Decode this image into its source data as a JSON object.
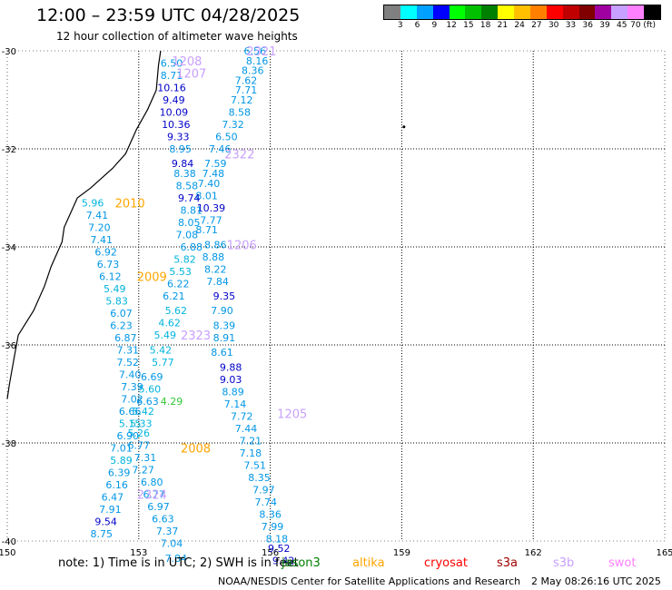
{
  "title": "12:00 – 23:59 UTC 04/28/2025",
  "subtitle": "12 hour collection of altimeter wave heights",
  "colorbar": {
    "labels": [
      "3",
      "6",
      "9",
      "12",
      "15",
      "18",
      "21",
      "24",
      "27",
      "30",
      "33",
      "36",
      "39",
      "45",
      "70 (ft)"
    ],
    "colors": [
      "#808080",
      "#00ffff",
      "#00a0ff",
      "#0000ff",
      "#00ff00",
      "#00c000",
      "#008000",
      "#ffff00",
      "#ffc000",
      "#ff8000",
      "#ff0000",
      "#c00000",
      "#800000",
      "#a000a0",
      "#c8a0ff",
      "#ff80ff",
      "#000000"
    ]
  },
  "note": "note:  1) Time is in UTC;  2) SWH is in feet",
  "satellites": [
    {
      "name": "jason3",
      "color": "#008000"
    },
    {
      "name": "altika",
      "color": "#ffa500"
    },
    {
      "name": "cryosat",
      "color": "#ff0000"
    },
    {
      "name": "s3a",
      "color": "#a00000"
    },
    {
      "name": "s3b",
      "color": "#c8a0ff"
    },
    {
      "name": "swot",
      "color": "#ff80ff"
    }
  ],
  "footer": {
    "credit": "NOAA/NESDIS Center for Satellite Applications and Research",
    "time": "2 May 08:26:16 UTC 2025"
  },
  "chart_data": {
    "type": "scatter",
    "xlim": [
      150,
      165
    ],
    "ylim": [
      -40,
      -30
    ],
    "x_ticks": [
      "150",
      "153",
      "156",
      "159",
      "162",
      "165"
    ],
    "y_ticks": [
      "-30",
      "-32",
      "-34",
      "-36",
      "-38",
      "-40"
    ],
    "grid": true,
    "coastline": [
      [
        153.5,
        -30.0
      ],
      [
        153.45,
        -30.3
      ],
      [
        153.4,
        -30.8
      ],
      [
        153.2,
        -31.2
      ],
      [
        152.95,
        -31.6
      ],
      [
        152.7,
        -32.1
      ],
      [
        152.4,
        -32.4
      ],
      [
        151.9,
        -32.8
      ],
      [
        151.6,
        -33.0
      ],
      [
        151.3,
        -33.6
      ],
      [
        151.25,
        -33.9
      ],
      [
        151.0,
        -34.4
      ],
      [
        150.85,
        -34.8
      ],
      [
        150.6,
        -35.3
      ],
      [
        150.25,
        -35.8
      ],
      [
        150.15,
        -36.3
      ],
      [
        150.05,
        -36.8
      ],
      [
        150.0,
        -37.1
      ]
    ],
    "time_labels": [
      {
        "text": "2321",
        "lon": 155.8,
        "lat": -30.0,
        "sat": "s3b"
      },
      {
        "text": "1208",
        "lon": 154.1,
        "lat": -30.2,
        "sat": "s3b"
      },
      {
        "text": "1207",
        "lon": 154.2,
        "lat": -30.45,
        "sat": "s3b"
      },
      {
        "text": "2322",
        "lon": 155.3,
        "lat": -32.1,
        "sat": "s3b"
      },
      {
        "text": "2010",
        "lon": 152.8,
        "lat": -33.1,
        "sat": "altika"
      },
      {
        "text": "1206",
        "lon": 155.35,
        "lat": -33.95,
        "sat": "s3b"
      },
      {
        "text": "2009",
        "lon": 153.3,
        "lat": -34.6,
        "sat": "altika"
      },
      {
        "text": "2323",
        "lon": 154.3,
        "lat": -35.8,
        "sat": "s3b"
      },
      {
        "text": "1205",
        "lon": 156.5,
        "lat": -37.4,
        "sat": "s3b"
      },
      {
        "text": "2008",
        "lon": 154.3,
        "lat": -38.1,
        "sat": "altika"
      },
      {
        "text": "2324",
        "lon": 153.3,
        "lat": -39.05,
        "sat": "s3b"
      }
    ],
    "series": [
      {
        "name": "jason3",
        "color": "#008000",
        "points": [
          {
            "lon": 153.75,
            "lat": -37.15,
            "v": "4.29"
          }
        ]
      },
      {
        "name": "s3b",
        "color": "#0000a0",
        "points": [
          {
            "lon": 155.65,
            "lat": -30.0,
            "v": "6.56"
          },
          {
            "lon": 155.7,
            "lat": -30.2,
            "v": "8.16"
          },
          {
            "lon": 155.6,
            "lat": -30.4,
            "v": "8.36"
          },
          {
            "lon": 155.45,
            "lat": -30.6,
            "v": "7.62"
          },
          {
            "lon": 155.45,
            "lat": -30.8,
            "v": "7.71"
          },
          {
            "lon": 155.35,
            "lat": -31.0,
            "v": "7.12"
          },
          {
            "lon": 155.3,
            "lat": -31.25,
            "v": "8.58"
          },
          {
            "lon": 155.15,
            "lat": -31.5,
            "v": "7.32"
          },
          {
            "lon": 155.0,
            "lat": -31.75,
            "v": "6.50"
          },
          {
            "lon": 154.85,
            "lat": -32.0,
            "v": "7.46"
          },
          {
            "lon": 154.75,
            "lat": -32.3,
            "v": "7.59"
          },
          {
            "lon": 154.7,
            "lat": -32.5,
            "v": "7.48"
          },
          {
            "lon": 154.6,
            "lat": -32.7,
            "v": "7.40"
          },
          {
            "lon": 154.55,
            "lat": -32.95,
            "v": "8.01"
          },
          {
            "lon": 154.65,
            "lat": -33.2,
            "v": "10.39"
          },
          {
            "lon": 154.65,
            "lat": -33.45,
            "v": "7.77"
          },
          {
            "lon": 154.55,
            "lat": -33.65,
            "v": "8.71"
          },
          {
            "lon": 154.75,
            "lat": -33.95,
            "v": "8.86"
          },
          {
            "lon": 154.7,
            "lat": -34.2,
            "v": "8.88"
          },
          {
            "lon": 154.75,
            "lat": -34.45,
            "v": "8.22"
          },
          {
            "lon": 154.8,
            "lat": -34.7,
            "v": "7.84"
          },
          {
            "lon": 154.95,
            "lat": -35.0,
            "v": "9.35"
          },
          {
            "lon": 154.9,
            "lat": -35.3,
            "v": "7.90"
          },
          {
            "lon": 154.95,
            "lat": -35.6,
            "v": "8.39"
          },
          {
            "lon": 154.95,
            "lat": -35.85,
            "v": "8.91"
          },
          {
            "lon": 154.9,
            "lat": -36.15,
            "v": "8.61"
          },
          {
            "lon": 155.1,
            "lat": -36.45,
            "v": "9.88"
          },
          {
            "lon": 155.1,
            "lat": -36.7,
            "v": "9.03"
          },
          {
            "lon": 155.15,
            "lat": -36.95,
            "v": "8.89"
          },
          {
            "lon": 155.2,
            "lat": -37.2,
            "v": "7.14"
          },
          {
            "lon": 155.35,
            "lat": -37.45,
            "v": "7.72"
          },
          {
            "lon": 155.45,
            "lat": -37.7,
            "v": "7.44"
          },
          {
            "lon": 155.55,
            "lat": -37.95,
            "v": "7.21"
          },
          {
            "lon": 155.55,
            "lat": -38.2,
            "v": "7.18"
          },
          {
            "lon": 155.65,
            "lat": -38.45,
            "v": "7.51"
          },
          {
            "lon": 155.75,
            "lat": -38.7,
            "v": "8.35"
          },
          {
            "lon": 155.85,
            "lat": -38.95,
            "v": "7.97"
          },
          {
            "lon": 155.9,
            "lat": -39.2,
            "v": "7.74"
          },
          {
            "lon": 156.0,
            "lat": -39.45,
            "v": "8.36"
          },
          {
            "lon": 156.05,
            "lat": -39.7,
            "v": "7.99"
          },
          {
            "lon": 156.15,
            "lat": -39.95,
            "v": "8.18"
          },
          {
            "lon": 156.2,
            "lat": -40.15,
            "v": "9.52"
          },
          {
            "lon": 156.3,
            "lat": -40.4,
            "v": "9.42"
          },
          {
            "lon": 153.75,
            "lat": -30.25,
            "v": "6.50"
          },
          {
            "lon": 153.75,
            "lat": -30.5,
            "v": "8.71"
          },
          {
            "lon": 153.75,
            "lat": -30.75,
            "v": "10.16"
          },
          {
            "lon": 153.8,
            "lat": -31.0,
            "v": "9.49"
          },
          {
            "lon": 153.8,
            "lat": -31.25,
            "v": "10.09"
          },
          {
            "lon": 153.85,
            "lat": -31.5,
            "v": "10.36"
          },
          {
            "lon": 153.9,
            "lat": -31.75,
            "v": "9.33"
          },
          {
            "lon": 153.95,
            "lat": -32.0,
            "v": "8.95"
          },
          {
            "lon": 154.0,
            "lat": -32.3,
            "v": "9.84"
          },
          {
            "lon": 154.05,
            "lat": -32.5,
            "v": "8.38"
          },
          {
            "lon": 154.1,
            "lat": -32.75,
            "v": "8.58"
          },
          {
            "lon": 154.15,
            "lat": -33.0,
            "v": "9.74"
          },
          {
            "lon": 154.2,
            "lat": -33.25,
            "v": "8.81"
          },
          {
            "lon": 154.15,
            "lat": -33.5,
            "v": "8.05"
          },
          {
            "lon": 154.1,
            "lat": -33.75,
            "v": "7.08"
          },
          {
            "lon": 154.2,
            "lat": -34.0,
            "v": "6.88"
          },
          {
            "lon": 154.05,
            "lat": -34.25,
            "v": "5.82"
          },
          {
            "lon": 153.95,
            "lat": -34.5,
            "v": "5.53"
          },
          {
            "lon": 153.9,
            "lat": -34.75,
            "v": "6.22"
          },
          {
            "lon": 153.8,
            "lat": -35.0,
            "v": "6.21"
          },
          {
            "lon": 153.85,
            "lat": -35.3,
            "v": "5.62"
          },
          {
            "lon": 153.7,
            "lat": -35.55,
            "v": "4.62"
          },
          {
            "lon": 153.6,
            "lat": -35.8,
            "v": "5.49"
          },
          {
            "lon": 153.5,
            "lat": -36.1,
            "v": "5.42"
          },
          {
            "lon": 153.55,
            "lat": -36.35,
            "v": "5.77"
          },
          {
            "lon": 153.3,
            "lat": -36.65,
            "v": "6.69"
          },
          {
            "lon": 153.25,
            "lat": -36.9,
            "v": "5.60"
          },
          {
            "lon": 153.2,
            "lat": -37.15,
            "v": "6.63"
          },
          {
            "lon": 153.1,
            "lat": -37.35,
            "v": "5.42"
          },
          {
            "lon": 153.05,
            "lat": -37.6,
            "v": "5.33"
          },
          {
            "lon": 153.0,
            "lat": -37.8,
            "v": "5.26"
          },
          {
            "lon": 153.0,
            "lat": -38.05,
            "v": "6.77"
          },
          {
            "lon": 153.15,
            "lat": -38.3,
            "v": "7.31"
          },
          {
            "lon": 153.1,
            "lat": -38.55,
            "v": "7.27"
          },
          {
            "lon": 153.3,
            "lat": -38.8,
            "v": "6.80"
          },
          {
            "lon": 153.35,
            "lat": -39.05,
            "v": "6.77"
          },
          {
            "lon": 153.45,
            "lat": -39.3,
            "v": "6.97"
          },
          {
            "lon": 153.55,
            "lat": -39.55,
            "v": "6.63"
          },
          {
            "lon": 153.65,
            "lat": -39.8,
            "v": "7.37"
          },
          {
            "lon": 153.75,
            "lat": -40.05,
            "v": "7.04"
          },
          {
            "lon": 153.85,
            "lat": -40.35,
            "v": "7.84"
          }
        ]
      },
      {
        "name": "altika",
        "color": "#00a0ff",
        "points": [
          {
            "lon": 151.95,
            "lat": -33.1,
            "v": "5.96"
          },
          {
            "lon": 152.05,
            "lat": -33.35,
            "v": "7.41"
          },
          {
            "lon": 152.1,
            "lat": -33.6,
            "v": "7.20"
          },
          {
            "lon": 152.15,
            "lat": -33.85,
            "v": "7.41"
          },
          {
            "lon": 152.25,
            "lat": -34.1,
            "v": "6.92"
          },
          {
            "lon": 152.3,
            "lat": -34.35,
            "v": "6.73"
          },
          {
            "lon": 152.35,
            "lat": -34.6,
            "v": "6.12"
          },
          {
            "lon": 152.45,
            "lat": -34.85,
            "v": "5.49"
          },
          {
            "lon": 152.5,
            "lat": -35.1,
            "v": "5.83"
          },
          {
            "lon": 152.6,
            "lat": -35.35,
            "v": "6.07"
          },
          {
            "lon": 152.6,
            "lat": -35.6,
            "v": "6.23"
          },
          {
            "lon": 152.7,
            "lat": -35.85,
            "v": "6.87"
          },
          {
            "lon": 152.75,
            "lat": -36.1,
            "v": "7.31"
          },
          {
            "lon": 152.75,
            "lat": -36.35,
            "v": "7.52"
          },
          {
            "lon": 152.8,
            "lat": -36.6,
            "v": "7.40"
          },
          {
            "lon": 152.85,
            "lat": -36.85,
            "v": "7.39"
          },
          {
            "lon": 152.85,
            "lat": -37.1,
            "v": "7.02"
          },
          {
            "lon": 152.8,
            "lat": -37.35,
            "v": "6.66"
          },
          {
            "lon": 152.8,
            "lat": -37.6,
            "v": "5.15"
          },
          {
            "lon": 152.75,
            "lat": -37.85,
            "v": "6.90"
          },
          {
            "lon": 152.6,
            "lat": -38.1,
            "v": "7.01"
          },
          {
            "lon": 152.6,
            "lat": -38.35,
            "v": "5.89"
          },
          {
            "lon": 152.55,
            "lat": -38.6,
            "v": "6.39"
          },
          {
            "lon": 152.5,
            "lat": -38.85,
            "v": "6.16"
          },
          {
            "lon": 152.4,
            "lat": -39.1,
            "v": "6.47"
          },
          {
            "lon": 152.35,
            "lat": -39.35,
            "v": "7.91"
          },
          {
            "lon": 152.25,
            "lat": -39.6,
            "v": "9.54"
          },
          {
            "lon": 152.15,
            "lat": -39.85,
            "v": "8.75"
          }
        ]
      }
    ]
  }
}
